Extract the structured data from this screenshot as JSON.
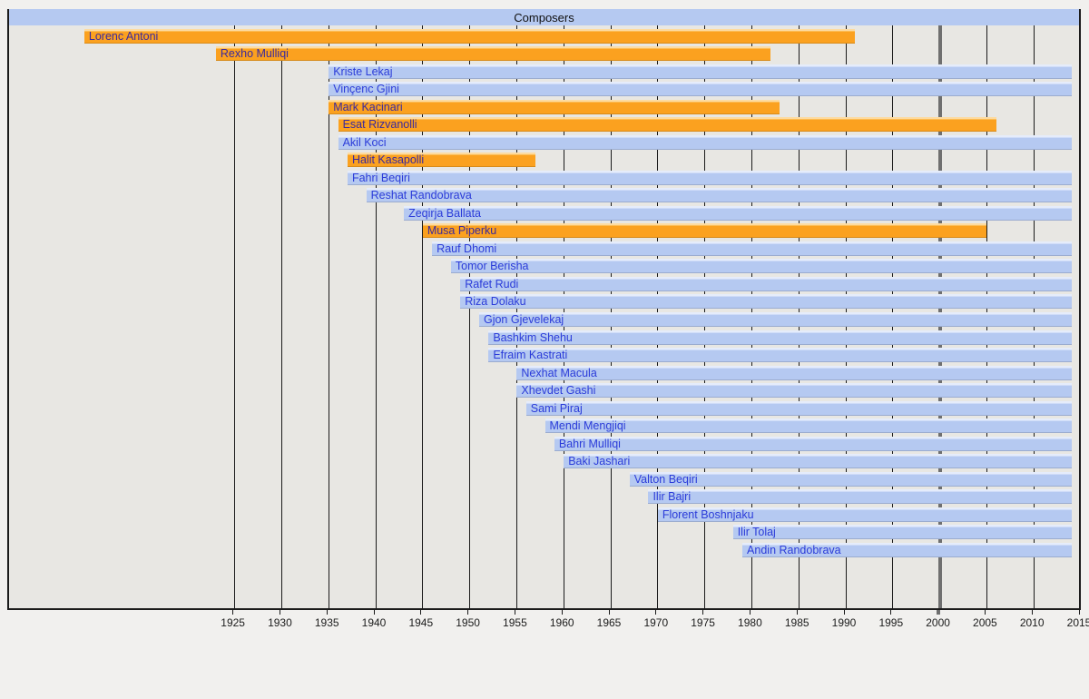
{
  "title": "Composers",
  "colors": {
    "deceased_bar": "#fba11f",
    "deceased_bar_top": "#fcbd55",
    "living_bar": "#b5c9f1",
    "living_bar_top": "#cfdcf8",
    "title_bar": "#b5c9f1",
    "plot_background": "#e8e7e3",
    "page_background": "#f1f0ee",
    "gridline": "#1b1b1b",
    "century_line": "#6f6f6f",
    "living_label_text": "#2b3cd9",
    "deceased_label_text": "#3b2a9d"
  },
  "chart_data": {
    "type": "timeline",
    "title": "Composers",
    "xlabel": "",
    "ylabel": "",
    "axis": {
      "range": [
        1901,
        2015
      ],
      "ticks": [
        1925,
        1930,
        1935,
        1940,
        1945,
        1950,
        1955,
        1960,
        1965,
        1970,
        1975,
        1980,
        1985,
        1990,
        1995,
        2000,
        2005,
        2010,
        2015
      ],
      "grid": true,
      "highlighted_gridline": 2000,
      "legend_position": "none"
    },
    "living_bar_end": 2014,
    "composers": [
      {
        "name": "Lorenc Antoni",
        "start": 1909,
        "end": 1991,
        "color": "orange"
      },
      {
        "name": "Rexho Mulliqi",
        "start": 1923,
        "end": 1982,
        "color": "orange"
      },
      {
        "name": "Kriste Lekaj",
        "start": 1935,
        "end": 2014,
        "color": "blue"
      },
      {
        "name": "Vinçenc Gjini",
        "start": 1935,
        "end": 2014,
        "color": "blue"
      },
      {
        "name": "Mark Kacinari",
        "start": 1935,
        "end": 1983,
        "color": "orange"
      },
      {
        "name": "Esat Rizvanolli",
        "start": 1936,
        "end": 2006,
        "color": "orange"
      },
      {
        "name": "Akil Koci",
        "start": 1936,
        "end": 2014,
        "color": "blue"
      },
      {
        "name": "Halit Kasapolli",
        "start": 1937,
        "end": 1957,
        "color": "orange"
      },
      {
        "name": "Fahri Beqiri",
        "start": 1937,
        "end": 2014,
        "color": "blue"
      },
      {
        "name": "Reshat Randobrava",
        "start": 1939,
        "end": 2014,
        "color": "blue"
      },
      {
        "name": "Zeqirja Ballata",
        "start": 1943,
        "end": 2014,
        "color": "blue"
      },
      {
        "name": "Musa Piperku",
        "start": 1945,
        "end": 2005,
        "color": "orange"
      },
      {
        "name": "Rauf Dhomi",
        "start": 1946,
        "end": 2014,
        "color": "blue"
      },
      {
        "name": "Tomor Berisha",
        "start": 1948,
        "end": 2014,
        "color": "blue"
      },
      {
        "name": "Rafet Rudi",
        "start": 1949,
        "end": 2014,
        "color": "blue"
      },
      {
        "name": "Riza Dolaku",
        "start": 1949,
        "end": 2014,
        "color": "blue"
      },
      {
        "name": "Gjon Gjevelekaj",
        "start": 1951,
        "end": 2014,
        "color": "blue"
      },
      {
        "name": "Bashkim Shehu",
        "start": 1952,
        "end": 2014,
        "color": "blue"
      },
      {
        "name": "Efraim Kastrati",
        "start": 1952,
        "end": 2014,
        "color": "blue"
      },
      {
        "name": "Nexhat Macula",
        "start": 1955,
        "end": 2014,
        "color": "blue"
      },
      {
        "name": "Xhevdet Gashi",
        "start": 1955,
        "end": 2014,
        "color": "blue"
      },
      {
        "name": "Sami Piraj",
        "start": 1956,
        "end": 2014,
        "color": "blue"
      },
      {
        "name": "Mendi Mengjiqi",
        "start": 1958,
        "end": 2014,
        "color": "blue"
      },
      {
        "name": "Bahri Mulliqi",
        "start": 1959,
        "end": 2014,
        "color": "blue"
      },
      {
        "name": "Baki Jashari",
        "start": 1960,
        "end": 2014,
        "color": "blue"
      },
      {
        "name": "Valton Beqiri",
        "start": 1967,
        "end": 2014,
        "color": "blue"
      },
      {
        "name": "Ilir Bajri",
        "start": 1969,
        "end": 2014,
        "color": "blue"
      },
      {
        "name": "Florent Boshnjaku",
        "start": 1970,
        "end": 2014,
        "color": "blue"
      },
      {
        "name": "Ilir Tolaj",
        "start": 1978,
        "end": 2014,
        "color": "blue"
      },
      {
        "name": "Andin Randobrava",
        "start": 1979,
        "end": 2014,
        "color": "blue"
      }
    ]
  }
}
